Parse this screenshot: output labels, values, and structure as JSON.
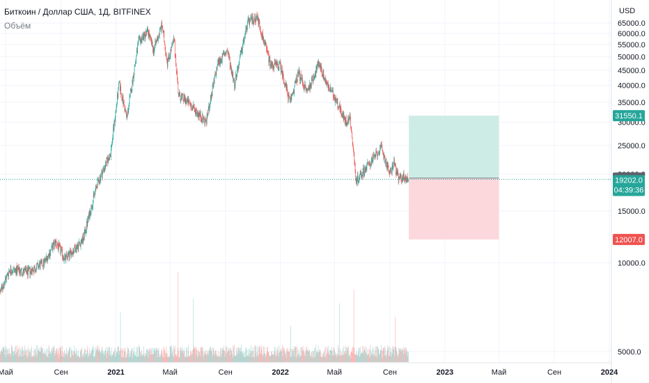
{
  "header": {
    "title": "Биткоин / Доллар США, 1Д, BITFINEX",
    "indicator": "Объём"
  },
  "colors": {
    "up": "#26a69a",
    "down": "#ef5350",
    "profit_zone": "#cdece5",
    "loss_zone": "#fcd8dc",
    "price_line": "#26a69a",
    "gray_badge": "#5d606b"
  },
  "chart_data": {
    "type": "candlestick",
    "currency": "USD",
    "yticks": [
      5000,
      10000,
      15000,
      20000,
      25000,
      30000,
      35000,
      40000,
      45000,
      50000,
      55000,
      60000,
      65000
    ],
    "ytick_labels": [
      "5000.0",
      "10000.0",
      "15000.0",
      "20000.0",
      "25000.0",
      "30000.0",
      "35000.0",
      "40000.0",
      "45000.0",
      "50000.0",
      "55000.0",
      "60000.0",
      "65000.0"
    ],
    "xticks": [
      {
        "label": "Май",
        "date": "2020-05-01",
        "bold": false
      },
      {
        "label": "Сен",
        "date": "2020-09-01",
        "bold": false
      },
      {
        "label": "2021",
        "date": "2021-01-01",
        "bold": true
      },
      {
        "label": "Май",
        "date": "2021-05-01",
        "bold": false
      },
      {
        "label": "Сен",
        "date": "2021-09-01",
        "bold": false
      },
      {
        "label": "2022",
        "date": "2022-01-01",
        "bold": true
      },
      {
        "label": "Май",
        "date": "2022-05-01",
        "bold": false
      },
      {
        "label": "Сен",
        "date": "2022-09-01",
        "bold": false
      },
      {
        "label": "2023",
        "date": "2023-01-01",
        "bold": true
      },
      {
        "label": "Май",
        "date": "2023-05-01",
        "bold": false
      },
      {
        "label": "Сен",
        "date": "2023-09-01",
        "bold": false
      },
      {
        "label": "2024",
        "date": "2024-01-01",
        "bold": true
      }
    ],
    "price_path": [
      [
        "2020-04-01",
        6800
      ],
      [
        "2020-05-10",
        9500
      ],
      [
        "2020-06-20",
        9300
      ],
      [
        "2020-07-25",
        10000
      ],
      [
        "2020-08-20",
        11800
      ],
      [
        "2020-09-10",
        10300
      ],
      [
        "2020-10-20",
        12000
      ],
      [
        "2020-11-20",
        18500
      ],
      [
        "2020-12-20",
        23500
      ],
      [
        "2021-01-08",
        40500
      ],
      [
        "2021-01-25",
        31000
      ],
      [
        "2021-02-20",
        56000
      ],
      [
        "2021-03-13",
        61000
      ],
      [
        "2021-03-25",
        52500
      ],
      [
        "2021-04-13",
        64000
      ],
      [
        "2021-04-25",
        48000
      ],
      [
        "2021-05-10",
        57000
      ],
      [
        "2021-05-20",
        37000
      ],
      [
        "2021-06-10",
        35000
      ],
      [
        "2021-07-20",
        30000
      ],
      [
        "2021-08-15",
        47500
      ],
      [
        "2021-09-05",
        52500
      ],
      [
        "2021-09-21",
        40500
      ],
      [
        "2021-10-20",
        65000
      ],
      [
        "2021-11-10",
        68500
      ],
      [
        "2021-12-10",
        47000
      ],
      [
        "2022-01-01",
        46500
      ],
      [
        "2022-01-22",
        35000
      ],
      [
        "2022-02-10",
        44000
      ],
      [
        "2022-03-01",
        38000
      ],
      [
        "2022-03-28",
        47500
      ],
      [
        "2022-04-15",
        40000
      ],
      [
        "2022-05-08",
        35000
      ],
      [
        "2022-05-25",
        30000
      ],
      [
        "2022-06-05",
        31000
      ],
      [
        "2022-06-18",
        19000
      ],
      [
        "2022-07-10",
        21000
      ],
      [
        "2022-08-13",
        24500
      ],
      [
        "2022-09-01",
        20000
      ],
      [
        "2022-09-10",
        22000
      ],
      [
        "2022-09-20",
        19200
      ],
      [
        "2022-10-01",
        19500
      ],
      [
        "2022-10-12",
        19202
      ]
    ],
    "last_date": "2022-10-12",
    "last_price": 19202.0,
    "last_price_label": "19202.0",
    "countdown_label": "04:39:36",
    "long_position": {
      "start_date": "2022-10-13",
      "end_date": "2023-05-01",
      "entry": 19378.7,
      "take_profit": 31550.1,
      "stop_loss": 12007.0
    },
    "badges": [
      {
        "value": 31550.1,
        "label": "31550.1",
        "color": "#26a69a"
      },
      {
        "value": 19378.7,
        "label": "19378.7",
        "color": "#5d606b"
      },
      {
        "value": 12007.0,
        "label": "12007.0",
        "color": "#ef5350"
      }
    ],
    "volume_spikes": [
      {
        "date": "2021-01-11",
        "level": 0.55
      },
      {
        "date": "2021-05-19",
        "level": 1.0
      },
      {
        "date": "2021-06-22",
        "level": 0.7
      },
      {
        "date": "2022-01-24",
        "level": 0.4
      },
      {
        "date": "2022-05-12",
        "level": 0.65
      },
      {
        "date": "2022-06-13",
        "level": 0.8
      },
      {
        "date": "2022-09-13",
        "level": 0.5
      }
    ]
  }
}
